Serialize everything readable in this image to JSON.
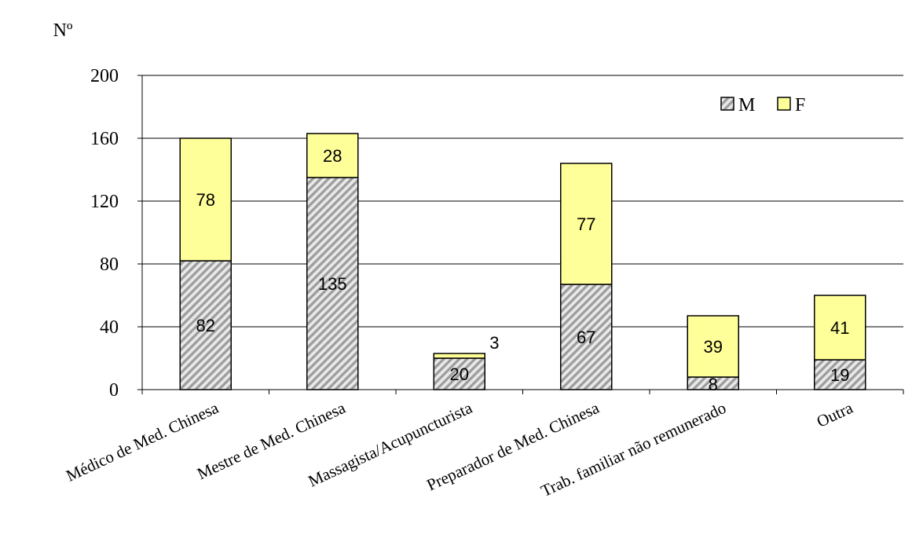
{
  "chart_data": {
    "type": "bar",
    "stacked": true,
    "ylabel": "Nº",
    "ylim": [
      0,
      200
    ],
    "yticks": [
      0,
      40,
      80,
      120,
      160,
      200
    ],
    "grid": true,
    "legend_position": "top-right",
    "categories": [
      "Médico de Med. Chinesa",
      "Mestre de Med. Chinesa",
      "Massagista/Acupuncturista",
      "Preparador de Med. Chinesa",
      "Trab. familiar não remunerado",
      "Outra"
    ],
    "series": [
      {
        "name": "M",
        "values": [
          82,
          135,
          20,
          67,
          8,
          19
        ],
        "color": "#c8c8c8",
        "pattern": "diagonal-hatch"
      },
      {
        "name": "F",
        "values": [
          78,
          28,
          3,
          77,
          39,
          41
        ],
        "color": "#ffff99",
        "pattern": "solid"
      }
    ]
  }
}
